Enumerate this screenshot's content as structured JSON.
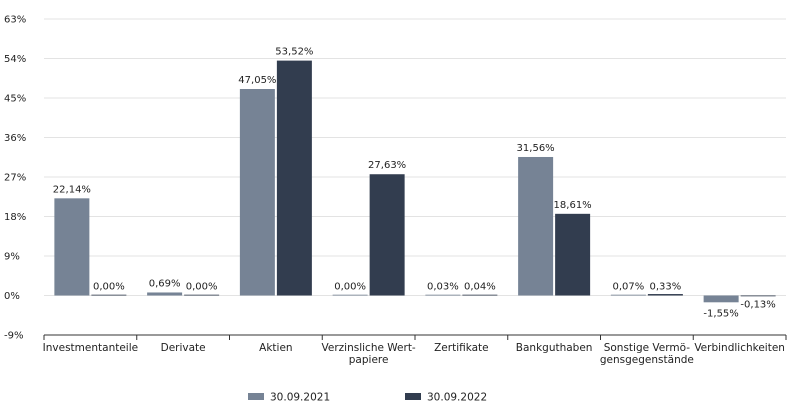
{
  "chart_data": {
    "type": "bar",
    "categories": [
      [
        "Investmentanteile"
      ],
      [
        "Derivate"
      ],
      [
        "Aktien"
      ],
      [
        "Verzinsliche Wert-",
        "papiere"
      ],
      [
        "Zertifikate"
      ],
      [
        "Bankguthaben"
      ],
      [
        "Sonstige Vermö-",
        "gensgegenstände"
      ],
      [
        "Verbindlichkeiten"
      ]
    ],
    "series": [
      {
        "name": "30.09.2021",
        "color": "#768395",
        "values": [
          22.14,
          0.69,
          47.05,
          0.0,
          0.03,
          31.56,
          0.07,
          -1.55
        ],
        "labels": [
          "22,14%",
          "0,69%",
          "47,05%",
          "0,00%",
          "0,03%",
          "31,56%",
          "0,07%",
          "-1,55%"
        ]
      },
      {
        "name": "30.09.2022",
        "color": "#323d4f",
        "values": [
          0.0,
          0.0,
          53.52,
          27.63,
          0.04,
          18.61,
          0.33,
          -0.13
        ],
        "labels": [
          "0,00%",
          "0,00%",
          "53,52%",
          "27,63%",
          "0,04%",
          "18,61%",
          "0,33%",
          "-0,13%"
        ]
      }
    ],
    "yticks": [
      -9,
      0,
      9,
      18,
      27,
      36,
      45,
      54,
      63
    ],
    "ytick_labels": [
      "-9%",
      "0%",
      "9%",
      "18%",
      "27%",
      "36%",
      "45%",
      "54%",
      "63%"
    ],
    "ylim": [
      -9,
      63
    ],
    "grid": true,
    "legend": "bottom-center",
    "xlabel": "",
    "ylabel": "",
    "title": ""
  }
}
